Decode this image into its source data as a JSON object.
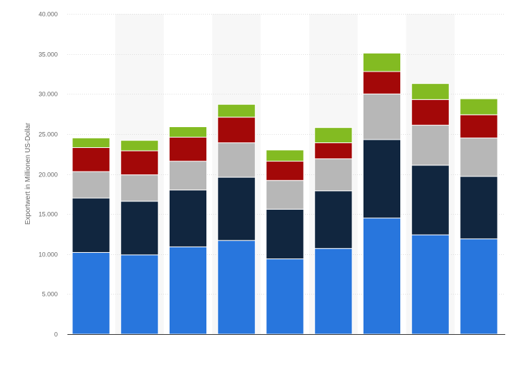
{
  "chart_data": {
    "type": "bar",
    "stacked": true,
    "title": "",
    "xlabel": "",
    "ylabel": "Exportwert in Millionen US-Dollar",
    "ylim": [
      0,
      40000
    ],
    "yticks": [
      0,
      5000,
      10000,
      15000,
      20000,
      25000,
      30000,
      35000,
      40000
    ],
    "ytick_labels": [
      "0",
      "5.000",
      "10.000",
      "15.000",
      "20.000",
      "25.000",
      "30.000",
      "35.000",
      "40.000"
    ],
    "categories": [
      "",
      "",
      "",
      "",
      "",
      "",
      "",
      "",
      ""
    ],
    "grid": true,
    "legend": "none",
    "series": [
      {
        "color": "#2876DD",
        "values": [
          10200,
          9900,
          10900,
          11700,
          9400,
          10700,
          14500,
          12400,
          11900
        ]
      },
      {
        "color": "#11263F",
        "values": [
          6800,
          6700,
          7100,
          7900,
          6200,
          7200,
          9800,
          8700,
          7800
        ]
      },
      {
        "color": "#B7B7B7",
        "values": [
          3300,
          3300,
          3600,
          4300,
          3600,
          4000,
          5700,
          5000,
          4800
        ]
      },
      {
        "color": "#A30808",
        "values": [
          3000,
          3000,
          3000,
          3200,
          2400,
          2000,
          2800,
          3200,
          2900
        ]
      },
      {
        "color": "#83BB22",
        "values": [
          1200,
          1300,
          1300,
          1600,
          1400,
          1900,
          2300,
          2000,
          2000
        ]
      }
    ]
  }
}
